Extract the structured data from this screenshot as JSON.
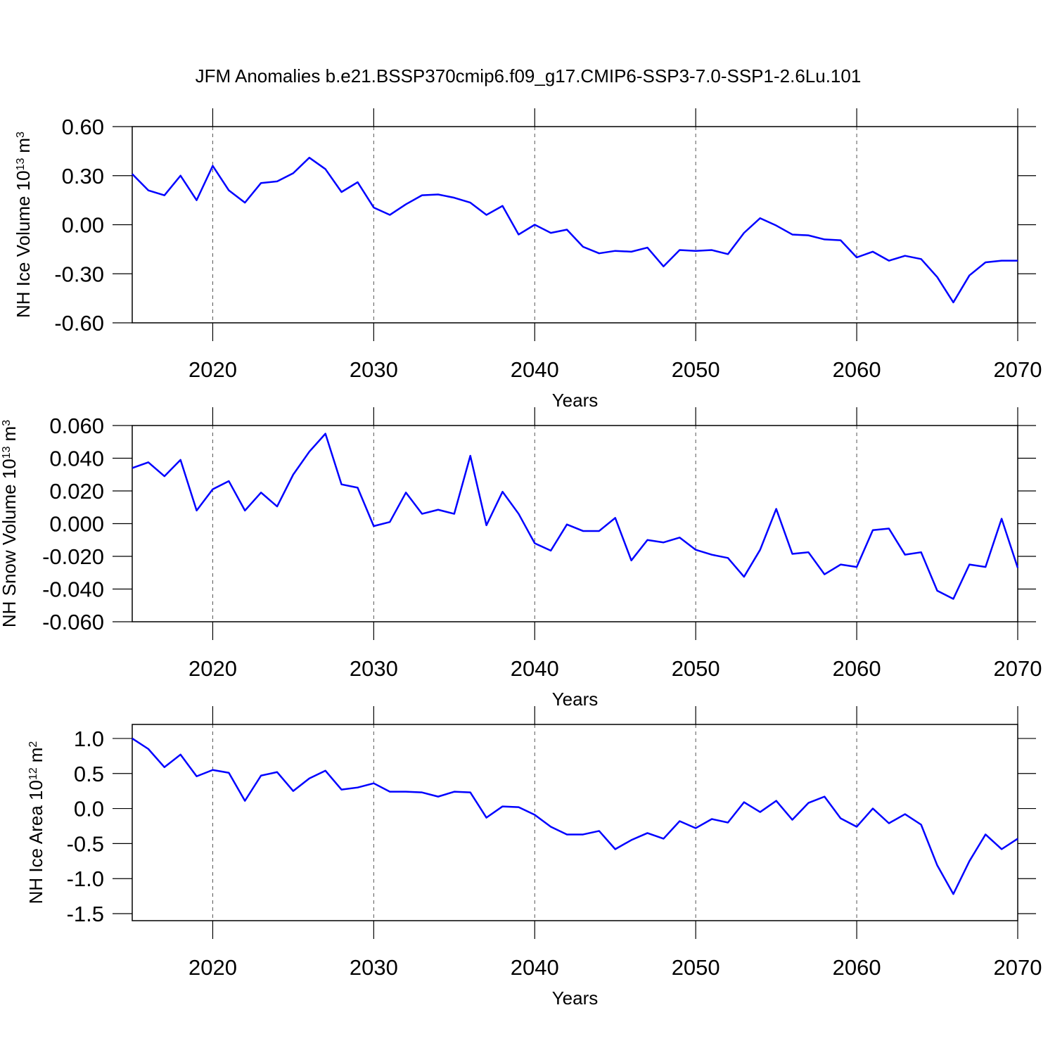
{
  "chart_data": [
    {
      "type": "line",
      "title": "JFM Anomalies b.e21.BSSP370cmip6.f09_g17.CMIP6-SSP3-7.0-SSP1-2.6Lu.101",
      "xlabel": "Years",
      "ylabel": [
        "NH Ice Volume 10",
        "13",
        "m",
        "3"
      ],
      "x": [
        2015,
        2016,
        2017,
        2018,
        2019,
        2020,
        2021,
        2022,
        2023,
        2024,
        2025,
        2026,
        2027,
        2028,
        2029,
        2030,
        2031,
        2032,
        2033,
        2034,
        2035,
        2036,
        2037,
        2038,
        2039,
        2040,
        2041,
        2042,
        2043,
        2044,
        2045,
        2046,
        2047,
        2048,
        2049,
        2050,
        2051,
        2052,
        2053,
        2054,
        2055,
        2056,
        2057,
        2058,
        2059,
        2060,
        2061,
        2062,
        2063,
        2064,
        2065,
        2066,
        2067,
        2068,
        2069,
        2070
      ],
      "values": [
        0.31,
        0.21,
        0.18,
        0.3,
        0.15,
        0.36,
        0.21,
        0.135,
        0.255,
        0.265,
        0.315,
        0.41,
        0.34,
        0.2,
        0.26,
        0.105,
        0.06,
        0.125,
        0.18,
        0.185,
        0.165,
        0.135,
        0.06,
        0.115,
        -0.06,
        0.0,
        -0.05,
        -0.03,
        -0.135,
        -0.175,
        -0.16,
        -0.165,
        -0.14,
        -0.255,
        -0.155,
        -0.16,
        -0.155,
        -0.18,
        -0.05,
        0.04,
        -0.005,
        -0.06,
        -0.065,
        -0.09,
        -0.095,
        -0.2,
        -0.165,
        -0.22,
        -0.19,
        -0.21,
        -0.32,
        -0.475,
        -0.31,
        -0.23,
        -0.22,
        -0.22
      ],
      "color": "#0000ff",
      "xlim": [
        2015,
        2070
      ],
      "xticks": [
        2020,
        2030,
        2040,
        2050,
        2060,
        2070
      ],
      "ylim": [
        -0.6,
        0.6
      ],
      "yticks": [
        {
          "value": -0.6,
          "label": "-0.60"
        },
        {
          "value": -0.3,
          "label": "-0.30"
        },
        {
          "value": 0,
          "label": "0.00"
        },
        {
          "value": 0.3,
          "label": "0.30"
        },
        {
          "value": 0.6,
          "label": "0.60"
        }
      ],
      "grid": "x"
    },
    {
      "type": "line",
      "xlabel": "Years",
      "ylabel": [
        "NH Snow Volume 10",
        "13",
        "m",
        "3"
      ],
      "x": [
        2015,
        2016,
        2017,
        2018,
        2019,
        2020,
        2021,
        2022,
        2023,
        2024,
        2025,
        2026,
        2027,
        2028,
        2029,
        2030,
        2031,
        2032,
        2033,
        2034,
        2035,
        2036,
        2037,
        2038,
        2039,
        2040,
        2041,
        2042,
        2043,
        2044,
        2045,
        2046,
        2047,
        2048,
        2049,
        2050,
        2051,
        2052,
        2053,
        2054,
        2055,
        2056,
        2057,
        2058,
        2059,
        2060,
        2061,
        2062,
        2063,
        2064,
        2065,
        2066,
        2067,
        2068,
        2069,
        2070
      ],
      "values": [
        0.034,
        0.0375,
        0.029,
        0.039,
        0.008,
        0.021,
        0.026,
        0.008,
        0.019,
        0.0105,
        0.03,
        0.044,
        0.055,
        0.024,
        0.022,
        -0.0015,
        0.001,
        0.019,
        0.006,
        0.0085,
        0.006,
        0.0415,
        -0.001,
        0.0195,
        0.006,
        -0.012,
        -0.0165,
        -0.0005,
        -0.0045,
        -0.0045,
        0.0035,
        -0.0225,
        -0.01,
        -0.0115,
        -0.0085,
        -0.016,
        -0.019,
        -0.021,
        -0.0325,
        -0.016,
        0.009,
        -0.0185,
        -0.0175,
        -0.031,
        -0.025,
        -0.0265,
        -0.004,
        -0.003,
        -0.019,
        -0.0175,
        -0.041,
        -0.046,
        -0.025,
        -0.0265,
        0.003,
        -0.027
      ],
      "color": "#0000ff",
      "xlim": [
        2015,
        2070
      ],
      "xticks": [
        2020,
        2030,
        2040,
        2050,
        2060,
        2070
      ],
      "ylim": [
        -0.06,
        0.06
      ],
      "yticks": [
        {
          "value": -0.06,
          "label": "-0.060"
        },
        {
          "value": -0.04,
          "label": "-0.040"
        },
        {
          "value": -0.02,
          "label": "-0.020"
        },
        {
          "value": 0,
          "label": "0.000"
        },
        {
          "value": 0.02,
          "label": "0.020"
        },
        {
          "value": 0.04,
          "label": "0.040"
        },
        {
          "value": 0.06,
          "label": "0.060"
        }
      ],
      "grid": "x"
    },
    {
      "type": "line",
      "xlabel": "Years",
      "ylabel": [
        "NH Ice Area 10",
        "12",
        "m",
        "2"
      ],
      "x": [
        2015,
        2016,
        2017,
        2018,
        2019,
        2020,
        2021,
        2022,
        2023,
        2024,
        2025,
        2026,
        2027,
        2028,
        2029,
        2030,
        2031,
        2032,
        2033,
        2034,
        2035,
        2036,
        2037,
        2038,
        2039,
        2040,
        2041,
        2042,
        2043,
        2044,
        2045,
        2046,
        2047,
        2048,
        2049,
        2050,
        2051,
        2052,
        2053,
        2054,
        2055,
        2056,
        2057,
        2058,
        2059,
        2060,
        2061,
        2062,
        2063,
        2064,
        2065,
        2066,
        2067,
        2068,
        2069,
        2070
      ],
      "values": [
        1.0,
        0.85,
        0.59,
        0.77,
        0.46,
        0.55,
        0.51,
        0.11,
        0.47,
        0.52,
        0.25,
        0.43,
        0.54,
        0.27,
        0.3,
        0.36,
        0.24,
        0.24,
        0.23,
        0.17,
        0.24,
        0.23,
        -0.13,
        0.03,
        0.02,
        -0.09,
        -0.26,
        -0.37,
        -0.37,
        -0.32,
        -0.58,
        -0.45,
        -0.35,
        -0.43,
        -0.18,
        -0.28,
        -0.15,
        -0.2,
        0.09,
        -0.05,
        0.11,
        -0.16,
        0.08,
        0.17,
        -0.14,
        -0.26,
        0.0,
        -0.21,
        -0.08,
        -0.23,
        -0.81,
        -1.22,
        -0.75,
        -0.37,
        -0.58,
        -0.43
      ],
      "color": "#0000ff",
      "xlim": [
        2015,
        2070
      ],
      "xticks": [
        2020,
        2030,
        2040,
        2050,
        2060,
        2070
      ],
      "ylim": [
        -1.6,
        1.2
      ],
      "yticks": [
        {
          "value": -1.5,
          "label": "-1.5"
        },
        {
          "value": -1,
          "label": "-1.0"
        },
        {
          "value": -0.5,
          "label": "-0.5"
        },
        {
          "value": 0,
          "label": "0.0"
        },
        {
          "value": 0.5,
          "label": "0.5"
        },
        {
          "value": 1,
          "label": "1.0"
        }
      ],
      "grid": "x"
    }
  ]
}
